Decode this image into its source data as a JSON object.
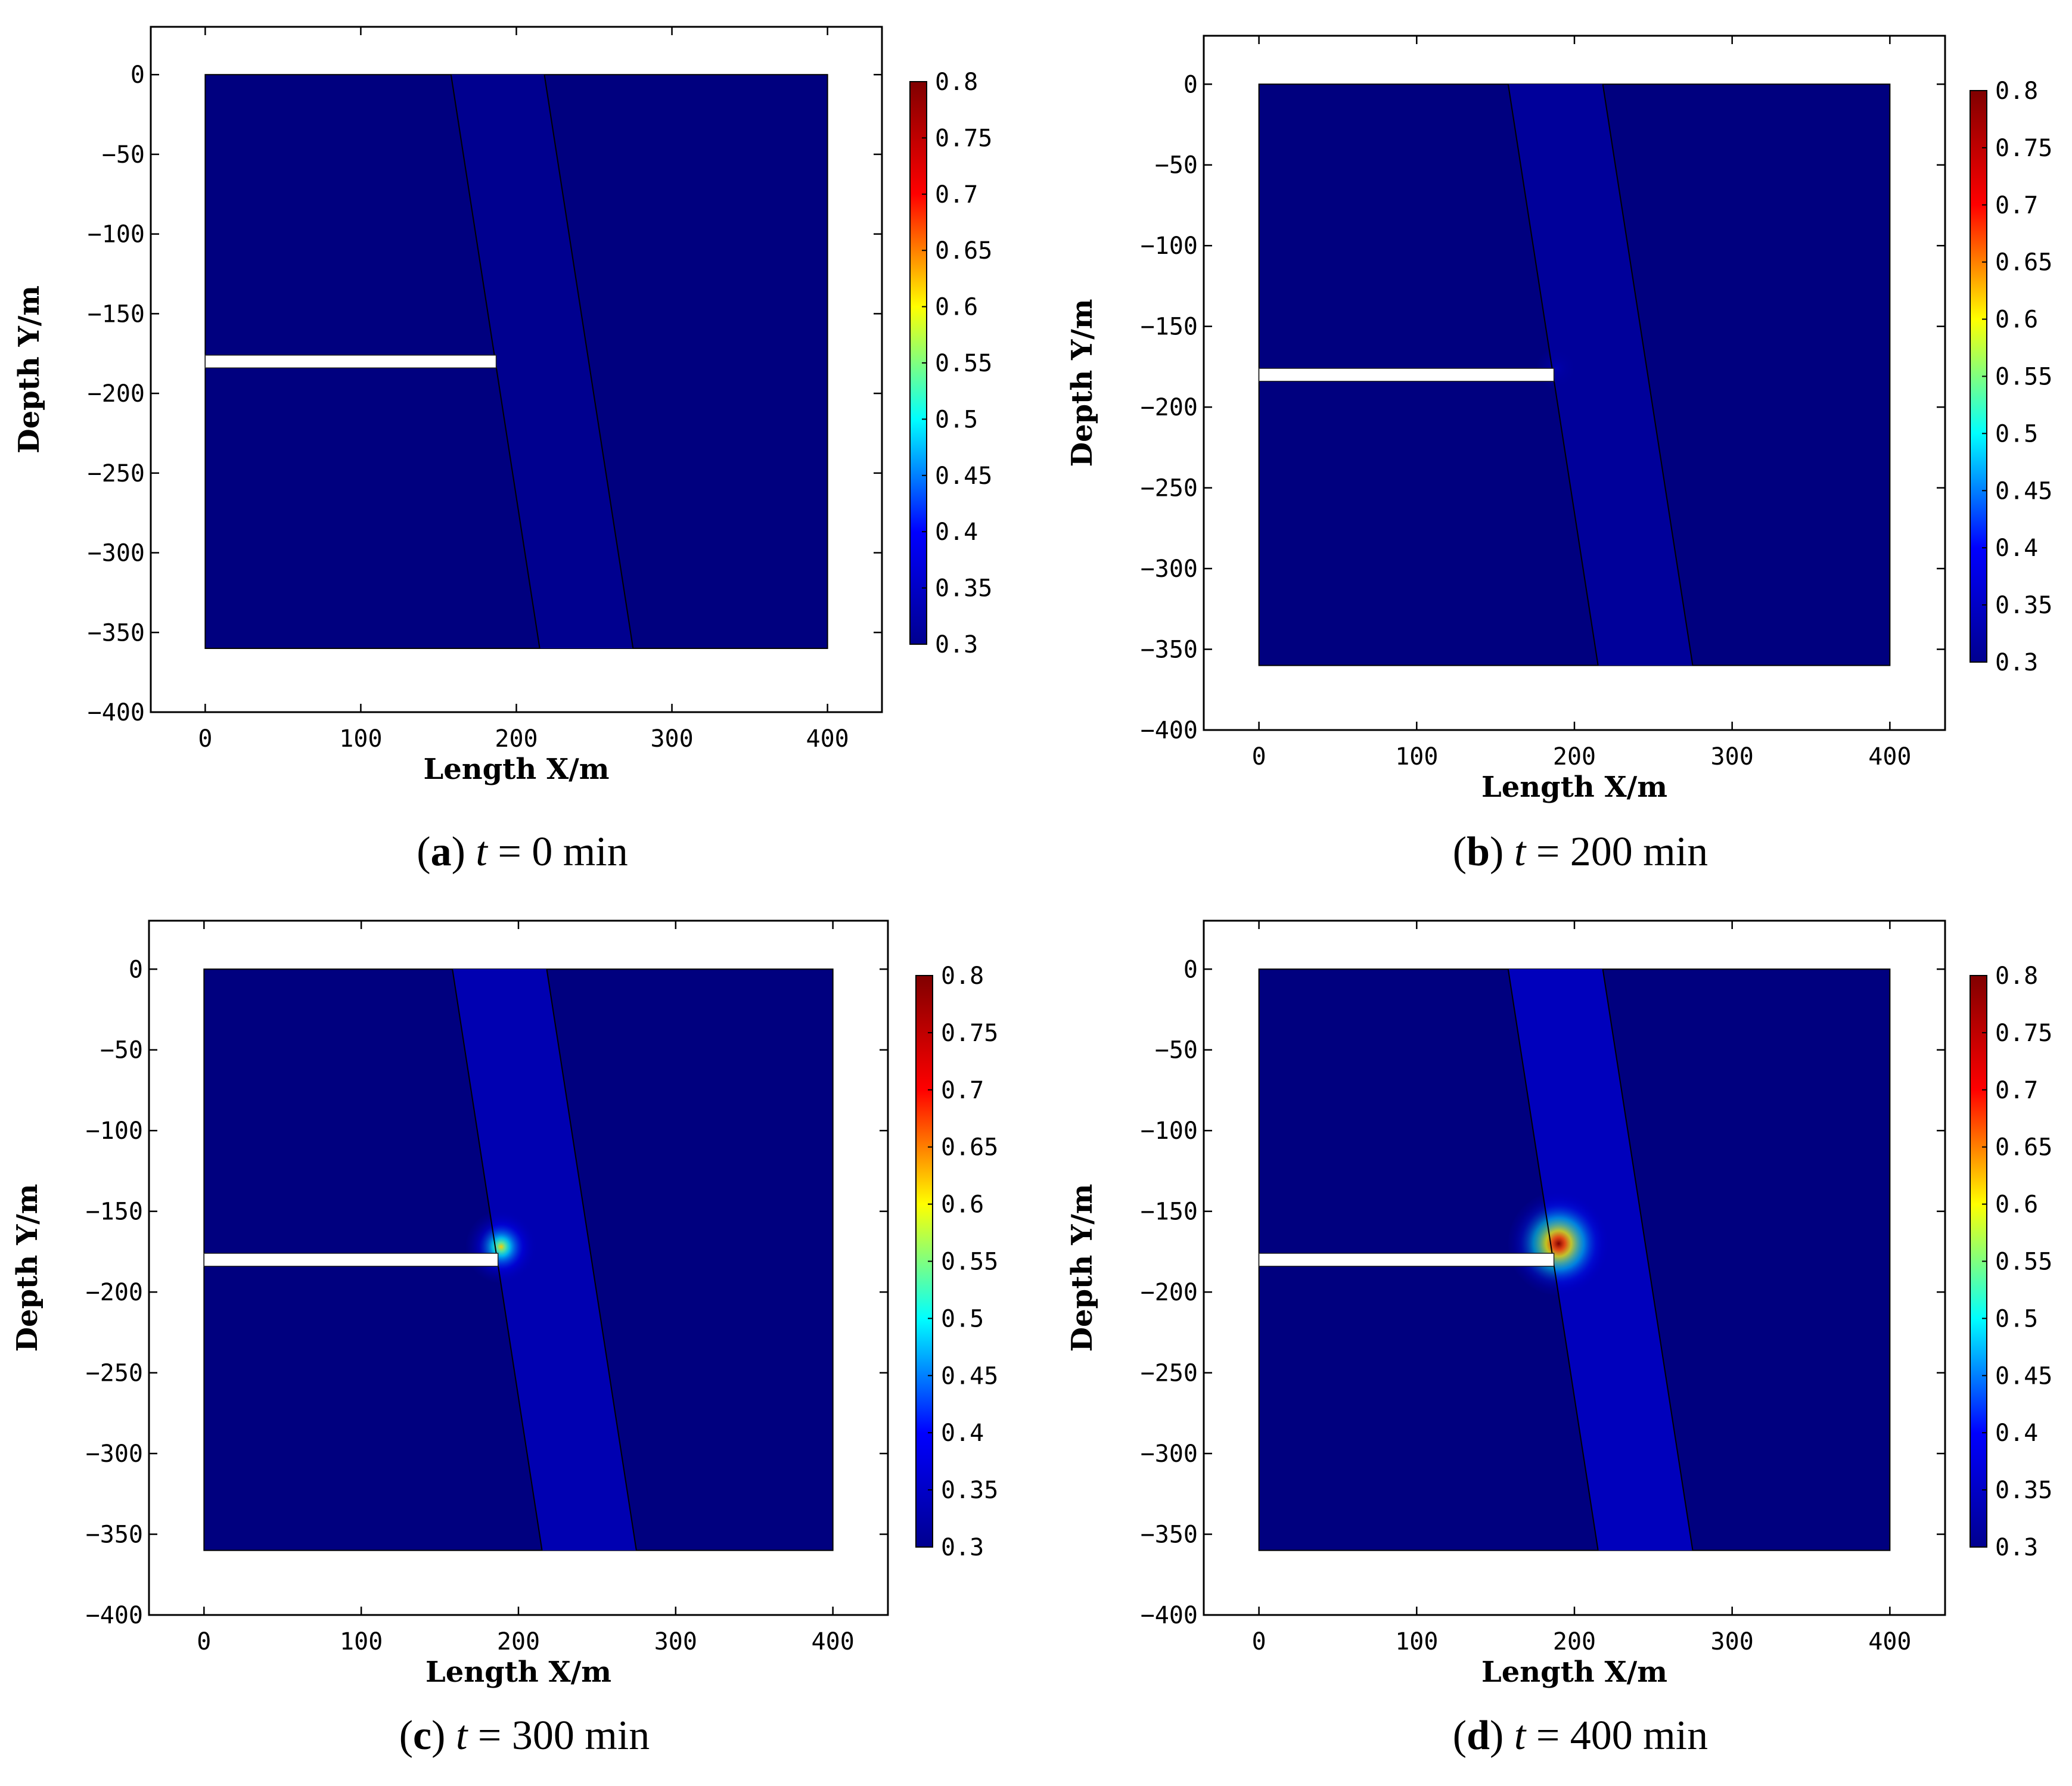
{
  "figure": {
    "colorbar": {
      "min": 0.3,
      "max": 0.8,
      "tick_labels": [
        "0.3",
        "0.35",
        "0.4",
        "0.45",
        "0.5",
        "0.55",
        "0.6",
        "0.65",
        "0.7",
        "0.75",
        "0.8"
      ],
      "colormap": [
        "#00008f",
        "#0000ff",
        "#00ffff",
        "#ffff00",
        "#ff0000",
        "#800000"
      ]
    },
    "colors": {
      "background_field": "#00007f",
      "fault_zone_faint": "#0616a0",
      "fault_zone_medium": "#0a22c4",
      "fault_zone_strong": "#0b2ad6"
    }
  },
  "chart_data": [
    {
      "id": "a",
      "type": "heatmap",
      "caption_letter": "a",
      "caption_var": "t",
      "caption_rest": " = 0 min",
      "xlabel": "Length X/m",
      "ylabel": "Depth Y/m",
      "xlim": [
        -35,
        435
      ],
      "ylim": [
        -400,
        30
      ],
      "xticks": [
        0,
        100,
        200,
        300,
        400
      ],
      "yticks": [
        0,
        -50,
        -100,
        -150,
        -200,
        -250,
        -300,
        -350,
        -400
      ],
      "domain": {
        "x": [
          0,
          400
        ],
        "y": [
          -360,
          0
        ]
      },
      "fault_zone": {
        "top_x": [
          158,
          218
        ],
        "bottom_x": [
          215,
          275
        ]
      },
      "borehole": {
        "x_end": 187,
        "y_center": -180,
        "half_width": 4
      },
      "fault_zone_value": 0.3,
      "hotspot": {
        "x": 188,
        "y": -180,
        "peak": 0.3,
        "spread": 0
      }
    },
    {
      "id": "b",
      "type": "heatmap",
      "caption_letter": "b",
      "caption_var": "t",
      "caption_rest": " = 200 min",
      "xlabel": "Length X/m",
      "ylabel": "Depth Y/m",
      "xlim": [
        -35,
        435
      ],
      "ylim": [
        -400,
        30
      ],
      "xticks": [
        0,
        100,
        200,
        300,
        400
      ],
      "yticks": [
        0,
        -50,
        -100,
        -150,
        -200,
        -250,
        -300,
        -350,
        -400
      ],
      "domain": {
        "x": [
          0,
          400
        ],
        "y": [
          -360,
          0
        ]
      },
      "fault_zone": {
        "top_x": [
          158,
          218
        ],
        "bottom_x": [
          215,
          275
        ]
      },
      "borehole": {
        "x_end": 187,
        "y_center": -180,
        "half_width": 4
      },
      "fault_zone_value": 0.31,
      "hotspot": {
        "x": 189,
        "y": -176,
        "peak": 0.33,
        "spread": 8
      }
    },
    {
      "id": "c",
      "type": "heatmap",
      "caption_letter": "c",
      "caption_var": "t",
      "caption_rest": " = 300 min",
      "xlabel": "Length X/m",
      "ylabel": "Depth Y/m",
      "xlim": [
        -35,
        435
      ],
      "ylim": [
        -400,
        30
      ],
      "xticks": [
        0,
        100,
        200,
        300,
        400
      ],
      "yticks": [
        0,
        -50,
        -100,
        -150,
        -200,
        -250,
        -300,
        -350,
        -400
      ],
      "domain": {
        "x": [
          0,
          400
        ],
        "y": [
          -360,
          0
        ]
      },
      "fault_zone": {
        "top_x": [
          158,
          218
        ],
        "bottom_x": [
          215,
          275
        ]
      },
      "borehole": {
        "x_end": 187,
        "y_center": -180,
        "half_width": 4
      },
      "fault_zone_value": 0.33,
      "hotspot": {
        "x": 189,
        "y": -172,
        "peak": 0.62,
        "spread": 14
      }
    },
    {
      "id": "d",
      "type": "heatmap",
      "caption_letter": "d",
      "caption_var": "t",
      "caption_rest": " = 400 min",
      "xlabel": "Length X/m",
      "ylabel": "Depth Y/m",
      "xlim": [
        -35,
        435
      ],
      "ylim": [
        -400,
        30
      ],
      "xticks": [
        0,
        100,
        200,
        300,
        400
      ],
      "yticks": [
        0,
        -50,
        -100,
        -150,
        -200,
        -250,
        -300,
        -350,
        -400
      ],
      "domain": {
        "x": [
          0,
          400
        ],
        "y": [
          -360,
          0
        ]
      },
      "fault_zone": {
        "top_x": [
          158,
          218
        ],
        "bottom_x": [
          215,
          275
        ]
      },
      "borehole": {
        "x_end": 187,
        "y_center": -180,
        "half_width": 4
      },
      "fault_zone_value": 0.34,
      "hotspot": {
        "x": 190,
        "y": -170,
        "peak": 0.8,
        "spread": 20
      }
    }
  ]
}
